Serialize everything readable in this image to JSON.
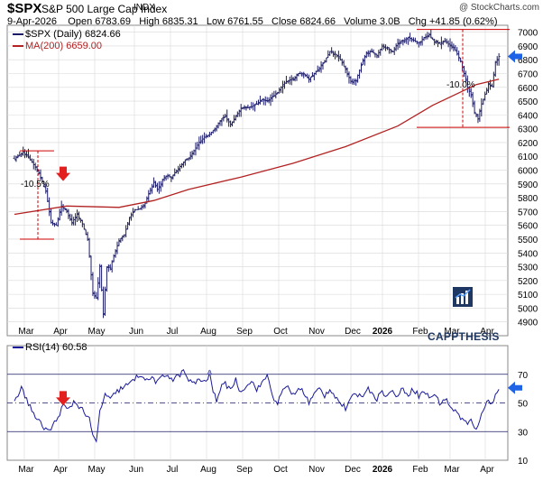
{
  "header": {
    "symbol": "$SPX",
    "name": "S&P 500 Large Cap Index",
    "exchange": "INDX",
    "watermark": "@ StockCharts.com",
    "date": "9-Apr-2026",
    "open_label": "Open",
    "open": "6783.69",
    "high_label": "High",
    "high": "6835.31",
    "low_label": "Low",
    "low": "6761.55",
    "close_label": "Close",
    "close": "6824.66",
    "volume_label": "Volume",
    "volume": "3.0B",
    "chg_label": "Chg",
    "chg": "+41.85 (0.62%)"
  },
  "legend": {
    "price": "$SPX (Daily) 6824.66",
    "ma": "MA(200) 6659.00",
    "rsi": "RSI(14) 60.58"
  },
  "logo": {
    "text": "CAPPTHESIS"
  },
  "colors": {
    "price_bars": "#1a1a66",
    "ma": "#b22222",
    "rsi_line": "#1a1a99",
    "rsi_fill": "#aab0dd",
    "annotation": "#cc0000",
    "red_arrow": "#e32020",
    "blue_arrow": "#1f63e6",
    "grid": "#d8d8d8",
    "logo": "#1f3763"
  },
  "chart_data": [
    {
      "type": "ohlc",
      "series": [
        {
          "name": "$SPX (Daily)"
        },
        {
          "name": "MA(200)"
        }
      ],
      "x_labels": [
        "Mar",
        "Apr",
        "May",
        "Jun",
        "Jul",
        "Aug",
        "Sep",
        "Oct",
        "Nov",
        "Dec",
        "2026",
        "Feb",
        "Mar",
        "Apr"
      ],
      "ylim": [
        4800,
        7050
      ],
      "y_ticks": [
        4900,
        5000,
        5100,
        5200,
        5300,
        5400,
        5500,
        5600,
        5700,
        5800,
        5900,
        6000,
        6100,
        6200,
        6300,
        6400,
        6500,
        6600,
        6700,
        6800,
        6900,
        7000
      ],
      "grid": true,
      "close_path": [
        [
          0,
          6080
        ],
        [
          5,
          6130
        ],
        [
          10,
          6060
        ],
        [
          14,
          5980
        ],
        [
          18,
          5850
        ],
        [
          21,
          5620
        ],
        [
          24,
          5600
        ],
        [
          27,
          5740
        ],
        [
          30,
          5700
        ],
        [
          33,
          5620
        ],
        [
          36,
          5680
        ],
        [
          39,
          5610
        ],
        [
          42,
          5500
        ],
        [
          45,
          5110
        ],
        [
          47,
          5070
        ],
        [
          49,
          5300
        ],
        [
          51,
          4960
        ],
        [
          53,
          5300
        ],
        [
          55,
          5290
        ],
        [
          57,
          5380
        ],
        [
          60,
          5490
        ],
        [
          63,
          5530
        ],
        [
          66,
          5660
        ],
        [
          69,
          5710
        ],
        [
          72,
          5720
        ],
        [
          75,
          5760
        ],
        [
          78,
          5860
        ],
        [
          80,
          5910
        ],
        [
          82,
          5860
        ],
        [
          84,
          5900
        ],
        [
          86,
          5950
        ],
        [
          88,
          5960
        ],
        [
          90,
          5940
        ],
        [
          92,
          5980
        ],
        [
          94,
          6010
        ],
        [
          97,
          6060
        ],
        [
          100,
          6090
        ],
        [
          103,
          6140
        ],
        [
          106,
          6200
        ],
        [
          109,
          6240
        ],
        [
          112,
          6260
        ],
        [
          115,
          6300
        ],
        [
          118,
          6360
        ],
        [
          121,
          6390
        ],
        [
          124,
          6330
        ],
        [
          127,
          6390
        ],
        [
          130,
          6450
        ],
        [
          133,
          6450
        ],
        [
          136,
          6460
        ],
        [
          139,
          6480
        ],
        [
          142,
          6510
        ],
        [
          145,
          6500
        ],
        [
          148,
          6530
        ],
        [
          151,
          6560
        ],
        [
          154,
          6620
        ],
        [
          157,
          6650
        ],
        [
          160,
          6660
        ],
        [
          163,
          6700
        ],
        [
          166,
          6700
        ],
        [
          169,
          6660
        ],
        [
          172,
          6700
        ],
        [
          175,
          6740
        ],
        [
          178,
          6790
        ],
        [
          181,
          6860
        ],
        [
          184,
          6840
        ],
        [
          187,
          6800
        ],
        [
          190,
          6730
        ],
        [
          193,
          6640
        ],
        [
          196,
          6650
        ],
        [
          199,
          6760
        ],
        [
          202,
          6850
        ],
        [
          205,
          6860
        ],
        [
          208,
          6830
        ],
        [
          211,
          6900
        ],
        [
          214,
          6880
        ],
        [
          217,
          6860
        ],
        [
          220,
          6920
        ],
        [
          223,
          6940
        ],
        [
          226,
          6960
        ],
        [
          229,
          6940
        ],
        [
          232,
          6920
        ],
        [
          235,
          6960
        ],
        [
          238,
          6980
        ],
        [
          241,
          6930
        ],
        [
          244,
          6920
        ],
        [
          247,
          6940
        ],
        [
          250,
          6900
        ],
        [
          253,
          6870
        ],
        [
          256,
          6790
        ],
        [
          258,
          6700
        ],
        [
          260,
          6600
        ],
        [
          262,
          6540
        ],
        [
          264,
          6420
        ],
        [
          266,
          6370
        ],
        [
          268,
          6480
        ],
        [
          270,
          6550
        ],
        [
          272,
          6620
        ],
        [
          274,
          6610
        ],
        [
          276,
          6780
        ],
        [
          278,
          6824.66
        ]
      ],
      "ma200_path": [
        [
          0,
          5680
        ],
        [
          30,
          5740
        ],
        [
          60,
          5730
        ],
        [
          80,
          5780
        ],
        [
          100,
          5860
        ],
        [
          130,
          5950
        ],
        [
          160,
          6050
        ],
        [
          190,
          6170
        ],
        [
          220,
          6320
        ],
        [
          240,
          6470
        ],
        [
          255,
          6560
        ],
        [
          265,
          6620
        ],
        [
          278,
          6659
        ]
      ],
      "annotations": [
        {
          "label": "-10.5%",
          "from": 6140,
          "to": 5500
        },
        {
          "label": "-10.0%",
          "from": 7020,
          "to": 6310
        }
      ],
      "last_value_marker": 6824.66
    },
    {
      "type": "line",
      "series": [
        {
          "name": "RSI(14)"
        }
      ],
      "x_labels": [
        "Mar",
        "Apr",
        "May",
        "Jun",
        "Jul",
        "Aug",
        "Sep",
        "Oct",
        "Nov",
        "Dec",
        "2026",
        "Feb",
        "Mar",
        "Apr"
      ],
      "ylim": [
        10,
        90
      ],
      "y_ticks": [
        10,
        30,
        50,
        70
      ],
      "reference_lines": [
        30,
        50,
        70
      ],
      "values": [
        [
          0,
          52
        ],
        [
          4,
          60
        ],
        [
          8,
          50
        ],
        [
          12,
          40
        ],
        [
          16,
          34
        ],
        [
          20,
          30
        ],
        [
          24,
          38
        ],
        [
          28,
          48
        ],
        [
          31,
          45
        ],
        [
          34,
          51
        ],
        [
          37,
          48
        ],
        [
          40,
          44
        ],
        [
          43,
          38
        ],
        [
          45,
          27
        ],
        [
          47,
          22
        ],
        [
          49,
          44
        ],
        [
          52,
          56
        ],
        [
          55,
          52
        ],
        [
          58,
          57
        ],
        [
          61,
          60
        ],
        [
          64,
          62
        ],
        [
          67,
          64
        ],
        [
          70,
          68
        ],
        [
          73,
          70
        ],
        [
          76,
          65
        ],
        [
          79,
          68
        ],
        [
          82,
          64
        ],
        [
          85,
          68
        ],
        [
          88,
          70
        ],
        [
          91,
          66
        ],
        [
          94,
          69
        ],
        [
          97,
          72
        ],
        [
          100,
          66
        ],
        [
          103,
          63
        ],
        [
          106,
          67
        ],
        [
          109,
          64
        ],
        [
          112,
          70
        ],
        [
          114,
          58
        ],
        [
          116,
          52
        ],
        [
          118,
          60
        ],
        [
          121,
          63
        ],
        [
          124,
          60
        ],
        [
          127,
          66
        ],
        [
          130,
          57
        ],
        [
          133,
          63
        ],
        [
          136,
          65
        ],
        [
          139,
          60
        ],
        [
          142,
          63
        ],
        [
          145,
          70
        ],
        [
          148,
          55
        ],
        [
          151,
          50
        ],
        [
          154,
          58
        ],
        [
          157,
          62
        ],
        [
          160,
          55
        ],
        [
          163,
          60
        ],
        [
          166,
          58
        ],
        [
          169,
          50
        ],
        [
          172,
          56
        ],
        [
          175,
          60
        ],
        [
          178,
          55
        ],
        [
          181,
          60
        ],
        [
          184,
          55
        ],
        [
          187,
          50
        ],
        [
          190,
          46
        ],
        [
          193,
          52
        ],
        [
          196,
          57
        ],
        [
          199,
          54
        ],
        [
          202,
          60
        ],
        [
          205,
          58
        ],
        [
          208,
          53
        ],
        [
          211,
          58
        ],
        [
          214,
          55
        ],
        [
          217,
          58
        ],
        [
          220,
          55
        ],
        [
          223,
          60
        ],
        [
          226,
          56
        ],
        [
          229,
          60
        ],
        [
          232,
          55
        ],
        [
          235,
          58
        ],
        [
          238,
          54
        ],
        [
          241,
          56
        ],
        [
          244,
          50
        ],
        [
          247,
          53
        ],
        [
          250,
          48
        ],
        [
          253,
          44
        ],
        [
          256,
          40
        ],
        [
          258,
          38
        ],
        [
          260,
          35
        ],
        [
          262,
          38
        ],
        [
          264,
          31
        ],
        [
          266,
          33
        ],
        [
          268,
          44
        ],
        [
          270,
          48
        ],
        [
          272,
          51
        ],
        [
          274,
          49
        ],
        [
          276,
          57
        ],
        [
          278,
          60.58
        ]
      ],
      "last_value_marker": 60.58
    }
  ]
}
